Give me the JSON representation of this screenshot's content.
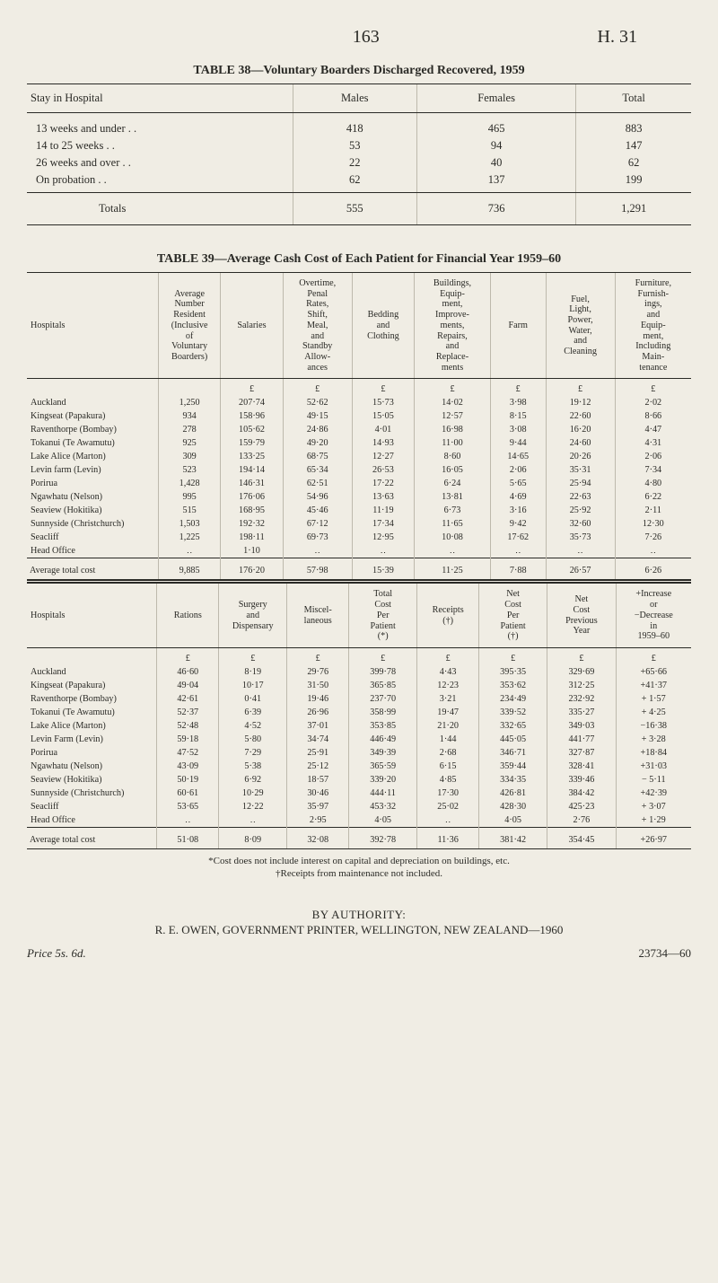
{
  "page": {
    "number": "163",
    "code": "H. 31"
  },
  "table38": {
    "caption": "TABLE 38—Voluntary Boarders Discharged Recovered, 1959",
    "headers": [
      "Stay in Hospital",
      "Males",
      "Females",
      "Total"
    ],
    "rows": [
      {
        "label": "13 weeks and under",
        "m": "418",
        "f": "465",
        "t": "883"
      },
      {
        "label": "14 to 25 weeks",
        "m": "53",
        "f": "94",
        "t": "147"
      },
      {
        "label": "26 weeks and over",
        "m": "22",
        "f": "40",
        "t": "62"
      },
      {
        "label": "On probation",
        "m": "62",
        "f": "137",
        "t": "199"
      }
    ],
    "totals": {
      "label": "Totals",
      "m": "555",
      "f": "736",
      "t": "1,291"
    }
  },
  "table39": {
    "caption": "TABLE 39—Average Cash Cost of Each Patient for Financial Year 1959–60",
    "pound": "£",
    "top": {
      "headers": [
        "Hospitals",
        "Average Number Resident (Inclusive of Voluntary Boarders)",
        "Salaries",
        "Overtime, Penal Rates, Shift, Meal, and Standby Allow- ances",
        "Bedding and Clothing",
        "Buildings, Equip- ment, Improve- ments, Repairs, and Replace- ments",
        "Farm",
        "Fuel, Light, Power, Water, and Cleaning",
        "Furniture, Furnish- ings, and Equip- ment, Including Main- tenance"
      ],
      "rows": [
        {
          "h": "Auckland",
          "c": [
            "1,250",
            "207·74",
            "52·62",
            "15·73",
            "14·02",
            "3·98",
            "19·12",
            "2·02"
          ]
        },
        {
          "h": "Kingseat (Papakura)",
          "c": [
            "934",
            "158·96",
            "49·15",
            "15·05",
            "12·57",
            "8·15",
            "22·60",
            "8·66"
          ]
        },
        {
          "h": "Raventhorpe (Bombay)",
          "c": [
            "278",
            "105·62",
            "24·86",
            "4·01",
            "16·98",
            "3·08",
            "16·20",
            "4·47"
          ]
        },
        {
          "h": "Tokanui (Te Awamutu)",
          "c": [
            "925",
            "159·79",
            "49·20",
            "14·93",
            "11·00",
            "9·44",
            "24·60",
            "4·31"
          ]
        },
        {
          "h": "Lake Alice (Marton)",
          "c": [
            "309",
            "133·25",
            "68·75",
            "12·27",
            "8·60",
            "14·65",
            "20·26",
            "2·06"
          ]
        },
        {
          "h": "Levin farm (Levin)",
          "c": [
            "523",
            "194·14",
            "65·34",
            "26·53",
            "16·05",
            "2·06",
            "35·31",
            "7·34"
          ]
        },
        {
          "h": "Porirua",
          "c": [
            "1,428",
            "146·31",
            "62·51",
            "17·22",
            "6·24",
            "5·65",
            "25·94",
            "4·80"
          ]
        },
        {
          "h": "Ngawhatu (Nelson)",
          "c": [
            "995",
            "176·06",
            "54·96",
            "13·63",
            "13·81",
            "4·69",
            "22·63",
            "6·22"
          ]
        },
        {
          "h": "Seaview (Hokitika)",
          "c": [
            "515",
            "168·95",
            "45·46",
            "11·19",
            "6·73",
            "3·16",
            "25·92",
            "2·11"
          ]
        },
        {
          "h": "Sunnyside (Christchurch)",
          "c": [
            "1,503",
            "192·32",
            "67·12",
            "17·34",
            "11·65",
            "9·42",
            "32·60",
            "12·30"
          ]
        },
        {
          "h": "Seacliff",
          "c": [
            "1,225",
            "198·11",
            "69·73",
            "12·95",
            "10·08",
            "17·62",
            "35·73",
            "7·26"
          ]
        },
        {
          "h": "Head Office",
          "c": [
            "‥",
            "1·10",
            "‥",
            "‥",
            "‥",
            "‥",
            "‥",
            "‥"
          ]
        }
      ],
      "avg": {
        "h": "Average total cost",
        "c": [
          "9,885",
          "176·20",
          "57·98",
          "15·39",
          "11·25",
          "7·88",
          "26·57",
          "6·26"
        ]
      }
    },
    "bottom": {
      "headers": [
        "Hospitals",
        "Rations",
        "Surgery and Dispensary",
        "Miscel- laneous",
        "Total Cost Per Patient (*)",
        "Receipts (†)",
        "Net Cost Per Patient (†)",
        "Net Cost Previous Year",
        "+Increase or −Decrease in 1959–60"
      ],
      "rows": [
        {
          "h": "Auckland",
          "c": [
            "46·60",
            "8·19",
            "29·76",
            "399·78",
            "4·43",
            "395·35",
            "329·69",
            "+65·66"
          ]
        },
        {
          "h": "Kingseat (Papakura)",
          "c": [
            "49·04",
            "10·17",
            "31·50",
            "365·85",
            "12·23",
            "353·62",
            "312·25",
            "+41·37"
          ]
        },
        {
          "h": "Raventhorpe (Bombay)",
          "c": [
            "42·61",
            "0·41",
            "19·46",
            "237·70",
            "3·21",
            "234·49",
            "232·92",
            "+ 1·57"
          ]
        },
        {
          "h": "Tokanui (Te Awamutu)",
          "c": [
            "52·37",
            "6·39",
            "26·96",
            "358·99",
            "19·47",
            "339·52",
            "335·27",
            "+ 4·25"
          ]
        },
        {
          "h": "Lake Alice (Marton)",
          "c": [
            "52·48",
            "4·52",
            "37·01",
            "353·85",
            "21·20",
            "332·65",
            "349·03",
            "−16·38"
          ]
        },
        {
          "h": "Levin Farm (Levin)",
          "c": [
            "59·18",
            "5·80",
            "34·74",
            "446·49",
            "1·44",
            "445·05",
            "441·77",
            "+ 3·28"
          ]
        },
        {
          "h": "Porirua",
          "c": [
            "47·52",
            "7·29",
            "25·91",
            "349·39",
            "2·68",
            "346·71",
            "327·87",
            "+18·84"
          ]
        },
        {
          "h": "Ngawhatu (Nelson)",
          "c": [
            "43·09",
            "5·38",
            "25·12",
            "365·59",
            "6·15",
            "359·44",
            "328·41",
            "+31·03"
          ]
        },
        {
          "h": "Seaview (Hokitika)",
          "c": [
            "50·19",
            "6·92",
            "18·57",
            "339·20",
            "4·85",
            "334·35",
            "339·46",
            "− 5·11"
          ]
        },
        {
          "h": "Sunnyside (Christchurch)",
          "c": [
            "60·61",
            "10·29",
            "30·46",
            "444·11",
            "17·30",
            "426·81",
            "384·42",
            "+42·39"
          ]
        },
        {
          "h": "Seacliff",
          "c": [
            "53·65",
            "12·22",
            "35·97",
            "453·32",
            "25·02",
            "428·30",
            "425·23",
            "+ 3·07"
          ]
        },
        {
          "h": "Head Office",
          "c": [
            "‥",
            "‥",
            "2·95",
            "4·05",
            "‥",
            "4·05",
            "2·76",
            "+ 1·29"
          ]
        }
      ],
      "avg": {
        "h": "Average total cost",
        "c": [
          "51·08",
          "8·09",
          "32·08",
          "392·78",
          "11·36",
          "381·42",
          "354·45",
          "+26·97"
        ]
      }
    }
  },
  "footnotes": {
    "a": "*Cost does not include interest on capital and depreciation on buildings, etc.",
    "b": "†Receipts from maintenance not included."
  },
  "authority": {
    "by": "BY AUTHORITY:",
    "line": "R. E. OWEN, GOVERNMENT PRINTER, WELLINGTON, NEW ZEALAND—1960"
  },
  "footer": {
    "price": "Price 5s. 6d.",
    "code": "23734—60"
  }
}
